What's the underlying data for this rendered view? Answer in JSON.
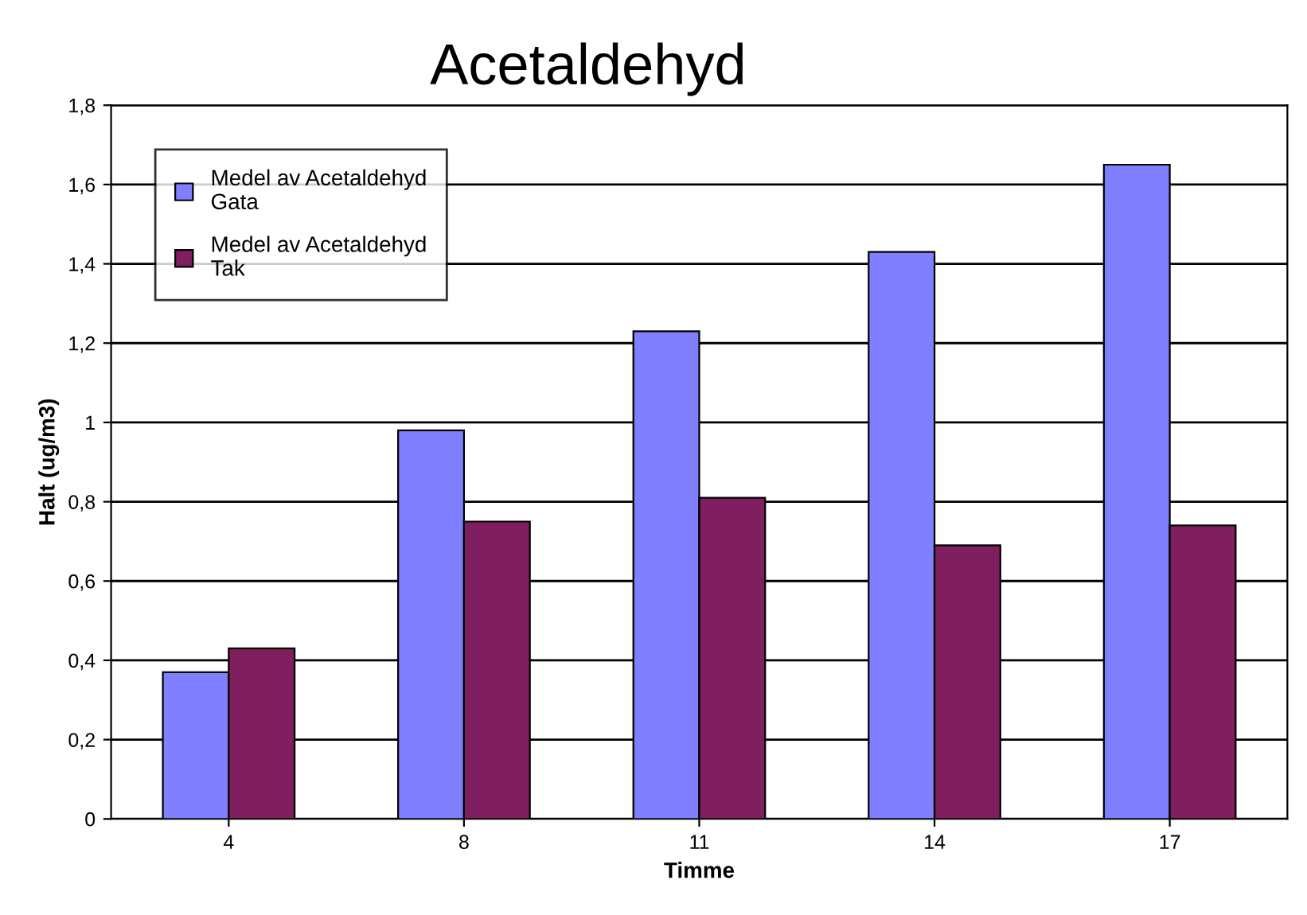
{
  "chart_data": {
    "type": "bar",
    "title": "Acetaldehyd",
    "xlabel": "Timme",
    "ylabel": "Halt (ug/m3)",
    "categories": [
      "4",
      "8",
      "11",
      "14",
      "17"
    ],
    "series": [
      {
        "name": "Medel av Acetaldehyd\nGata",
        "color": "#8080ff",
        "values": [
          0.37,
          0.98,
          1.23,
          1.43,
          1.65
        ]
      },
      {
        "name": "Medel av Acetaldehyd\nTak",
        "color": "#7f1f5f",
        "values": [
          0.43,
          0.75,
          0.81,
          0.69,
          0.74
        ]
      }
    ],
    "ylim": [
      0,
      1.8
    ],
    "yticks": [
      0,
      {
        "value": 0.2,
        "label": "0,2"
      },
      {
        "value": 0.4,
        "label": "0,4"
      },
      {
        "value": 0.6,
        "label": "0,6"
      },
      {
        "value": 0.8,
        "label": "0,8"
      },
      1,
      {
        "value": 1.2,
        "label": "1,2"
      },
      {
        "value": 1.4,
        "label": "1,4"
      },
      {
        "value": 1.6,
        "label": "1,6"
      },
      {
        "value": 1.8,
        "label": "1,8"
      }
    ],
    "grid": "y",
    "legend": "top left"
  }
}
